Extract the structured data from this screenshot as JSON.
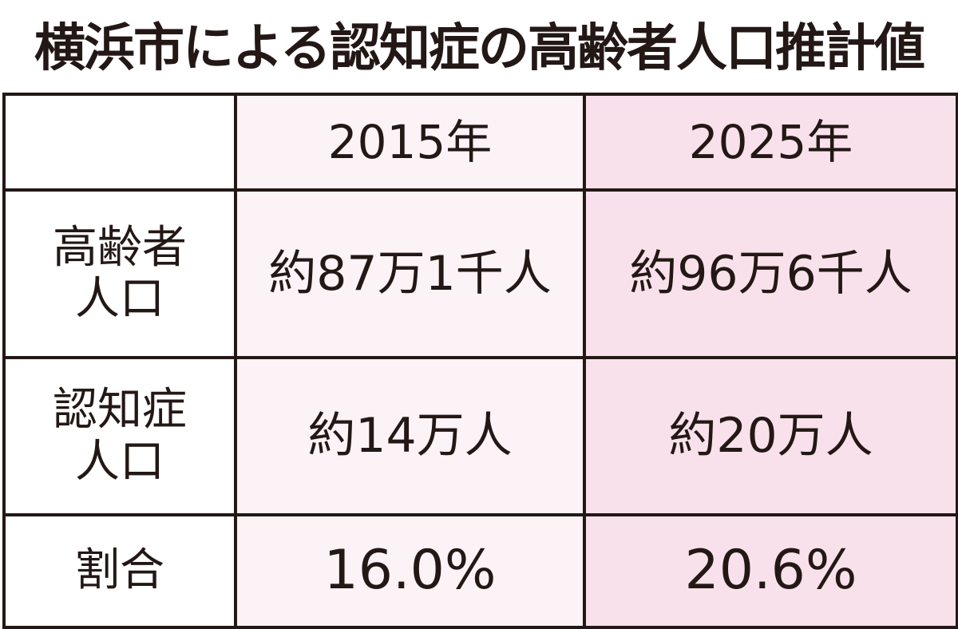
{
  "title": "横浜市による認知症の高齢者人口推計値",
  "chart_data": {
    "type": "table",
    "title": "横浜市による認知症の高齢者人口推計値",
    "columns": [
      "",
      "2015年",
      "2025年"
    ],
    "rows": [
      {
        "label": "高齢者人口",
        "label_lines": [
          "高齢者",
          "人口"
        ],
        "values": [
          "約87万1千人",
          "約96万6千人"
        ]
      },
      {
        "label": "認知症人口",
        "label_lines": [
          "認知症",
          "人口"
        ],
        "values": [
          "約14万人",
          "約20万人"
        ]
      },
      {
        "label": "割合",
        "label_lines": [
          "割合"
        ],
        "values": [
          "16.0%",
          "20.6%"
        ]
      }
    ],
    "colors": {
      "col_2015": "#fcf3f7",
      "col_2025": "#f9e1ec",
      "border": "#231815"
    }
  }
}
